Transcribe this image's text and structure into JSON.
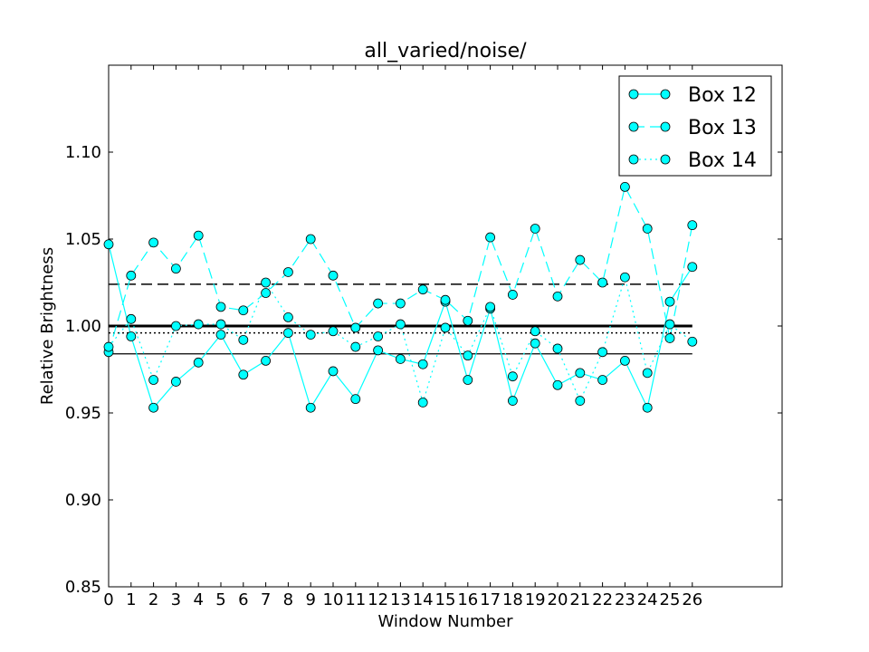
{
  "chart_data": {
    "type": "line",
    "title": "all_varied/noise/",
    "xlabel": "Window Number",
    "ylabel": "Relative Brightness",
    "xlim": [
      0,
      30
    ],
    "ylim": [
      0.85,
      1.15
    ],
    "x_ticks": [
      0,
      1,
      2,
      3,
      4,
      5,
      6,
      7,
      8,
      9,
      10,
      11,
      12,
      13,
      14,
      15,
      16,
      17,
      18,
      19,
      20,
      21,
      22,
      23,
      24,
      25,
      26
    ],
    "y_ticks": [
      0.85,
      0.9,
      0.95,
      1.0,
      1.05,
      1.1
    ],
    "y_tick_labels": [
      "0.85",
      "0.90",
      "0.95",
      "1.00",
      "1.05",
      "1.10"
    ],
    "legend_position": "top-right",
    "marker_color": "#00ffff",
    "line_color": "#00ffff",
    "series": [
      {
        "name": "Box 12",
        "linestyle": "solid",
        "x": [
          0,
          1,
          2,
          3,
          4,
          5,
          6,
          7,
          8,
          9,
          10,
          11,
          12,
          13,
          14,
          15,
          16,
          17,
          18,
          19,
          20,
          21,
          22,
          23,
          24,
          25,
          26
        ],
        "values": [
          1.047,
          0.994,
          0.953,
          0.968,
          0.979,
          0.995,
          0.972,
          0.98,
          0.996,
          0.953,
          0.974,
          0.958,
          0.986,
          0.981,
          0.978,
          1.014,
          0.969,
          1.01,
          0.957,
          0.99,
          0.966,
          0.973,
          0.969,
          0.98,
          0.953,
          1.014,
          1.034
        ]
      },
      {
        "name": "Box 13",
        "linestyle": "dashed",
        "x": [
          0,
          1,
          2,
          3,
          4,
          5,
          6,
          7,
          8,
          9,
          10,
          11,
          12,
          13,
          14,
          15,
          16,
          17,
          18,
          19,
          20,
          21,
          22,
          23,
          24,
          25,
          26
        ],
        "values": [
          0.985,
          1.029,
          1.048,
          1.033,
          1.052,
          1.011,
          1.009,
          1.019,
          1.031,
          1.05,
          1.029,
          0.999,
          1.013,
          1.013,
          1.021,
          1.015,
          1.003,
          1.051,
          1.018,
          1.056,
          1.017,
          1.038,
          1.025,
          1.08,
          1.056,
          0.993,
          1.058
        ]
      },
      {
        "name": "Box 14",
        "linestyle": "dotted",
        "x": [
          0,
          1,
          2,
          3,
          4,
          5,
          6,
          7,
          8,
          9,
          10,
          11,
          12,
          13,
          14,
          15,
          16,
          17,
          18,
          19,
          20,
          21,
          22,
          23,
          24,
          25,
          26
        ],
        "values": [
          0.988,
          1.004,
          0.969,
          1.0,
          1.001,
          1.001,
          0.992,
          1.025,
          1.005,
          0.995,
          0.997,
          0.988,
          0.994,
          1.001,
          0.956,
          0.999,
          0.983,
          1.011,
          0.971,
          0.997,
          0.987,
          0.957,
          0.985,
          1.028,
          0.973,
          1.001,
          0.991
        ]
      }
    ],
    "reference_lines": [
      {
        "y": 1.0,
        "style": "solid-thick",
        "color": "#000000"
      },
      {
        "y": 1.024,
        "style": "dashed",
        "color": "#000000"
      },
      {
        "y": 0.996,
        "style": "dotted",
        "color": "#000000"
      },
      {
        "y": 0.984,
        "style": "solid-thin",
        "color": "#000000"
      }
    ]
  }
}
